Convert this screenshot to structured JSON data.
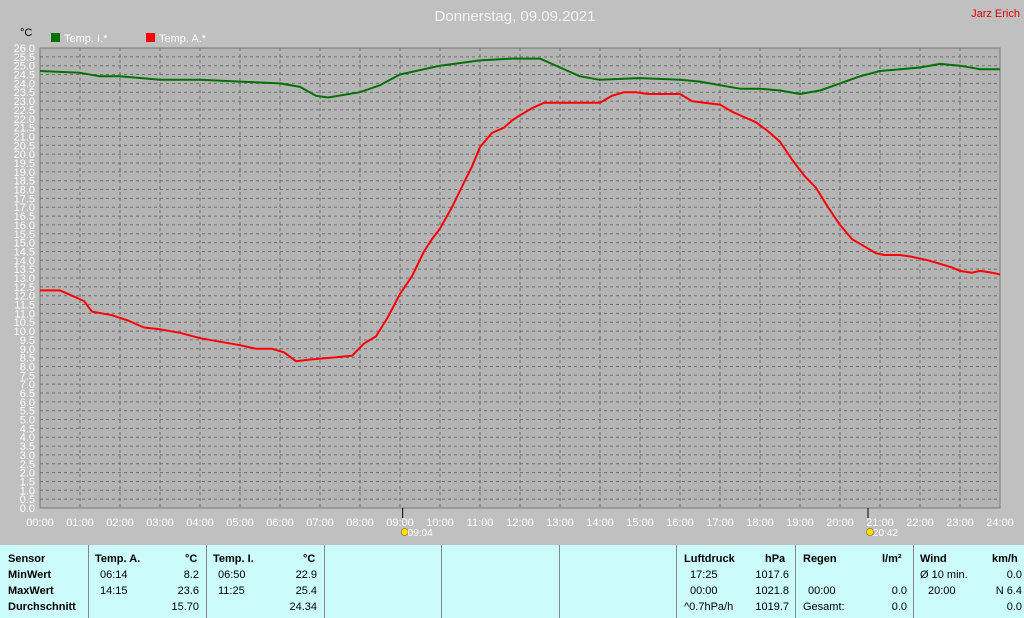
{
  "header": {
    "title": "Donnerstag, 09.09.2021",
    "author": "Jarz Erich"
  },
  "chart_data": {
    "type": "line",
    "y_unit": "°C",
    "ylim": [
      0,
      26
    ],
    "y_ticks": [
      "0.0",
      "0.5",
      "1.0",
      "1.5",
      "2.0",
      "2.5",
      "3.0",
      "3.5",
      "4.0",
      "4.5",
      "5.0",
      "5.5",
      "6.0",
      "6.5",
      "7.0",
      "7.5",
      "8.0",
      "8.5",
      "9.0",
      "9.5",
      "10.0",
      "10.5",
      "11.0",
      "11.5",
      "12.0",
      "12.5",
      "13.0",
      "13.5",
      "14.0",
      "14.5",
      "15.0",
      "15.5",
      "16.0",
      "16.5",
      "17.0",
      "17.5",
      "18.0",
      "18.5",
      "19.0",
      "19.5",
      "20.0",
      "20.5",
      "21.0",
      "21.5",
      "22.0",
      "22.5",
      "23.0",
      "23.5",
      "24.0",
      "24.5",
      "25.0",
      "25.5",
      "26.0"
    ],
    "x_ticks": [
      "00:00",
      "01:00",
      "02:00",
      "03:00",
      "04:00",
      "05:00",
      "06:00",
      "07:00",
      "08:00",
      "09:00",
      "10:00",
      "11:00",
      "12:00",
      "13:00",
      "14:00",
      "15:00",
      "16:00",
      "17:00",
      "18:00",
      "19:00",
      "20:00",
      "21:00",
      "22:00",
      "23:00",
      "24:00"
    ],
    "grid": true,
    "legend_position": "top-left",
    "markers": [
      {
        "label": "09:04",
        "hour": 9.0667,
        "icon": "sunrise-icon"
      },
      {
        "label": "20:42",
        "hour": 20.7,
        "icon": "sunset-icon"
      }
    ],
    "series": [
      {
        "name": "Temp. I.*",
        "color": "#007000",
        "points": [
          [
            0,
            24.7
          ],
          [
            1,
            24.6
          ],
          [
            1.5,
            24.4
          ],
          [
            2,
            24.4
          ],
          [
            3,
            24.2
          ],
          [
            4,
            24.2
          ],
          [
            5,
            24.1
          ],
          [
            6,
            24.0
          ],
          [
            6.5,
            23.8
          ],
          [
            6.9,
            23.3
          ],
          [
            7.2,
            23.2
          ],
          [
            8,
            23.5
          ],
          [
            8.5,
            23.9
          ],
          [
            9,
            24.5
          ],
          [
            10,
            25.0
          ],
          [
            11,
            25.3
          ],
          [
            11.8,
            25.4
          ],
          [
            12.5,
            25.4
          ],
          [
            13,
            24.9
          ],
          [
            13.5,
            24.4
          ],
          [
            14,
            24.2
          ],
          [
            15,
            24.3
          ],
          [
            16,
            24.2
          ],
          [
            16.5,
            24.1
          ],
          [
            17,
            23.9
          ],
          [
            17.5,
            23.7
          ],
          [
            18,
            23.7
          ],
          [
            18.5,
            23.6
          ],
          [
            19,
            23.4
          ],
          [
            19.5,
            23.6
          ],
          [
            20,
            24.0
          ],
          [
            20.5,
            24.4
          ],
          [
            21,
            24.7
          ],
          [
            22,
            24.9
          ],
          [
            22.5,
            25.1
          ],
          [
            23,
            25.0
          ],
          [
            23.5,
            24.8
          ],
          [
            24,
            24.8
          ]
        ]
      },
      {
        "name": "Temp. A.*",
        "color": "#ff0000",
        "points": [
          [
            0,
            12.3
          ],
          [
            0.5,
            12.3
          ],
          [
            0.8,
            12.0
          ],
          [
            1.1,
            11.7
          ],
          [
            1.3,
            11.1
          ],
          [
            1.8,
            10.9
          ],
          [
            2.2,
            10.6
          ],
          [
            2.6,
            10.2
          ],
          [
            3,
            10.1
          ],
          [
            3.5,
            9.9
          ],
          [
            4,
            9.6
          ],
          [
            4.5,
            9.4
          ],
          [
            5,
            9.2
          ],
          [
            5.4,
            9.0
          ],
          [
            5.8,
            9.0
          ],
          [
            6.1,
            8.8
          ],
          [
            6.4,
            8.3
          ],
          [
            6.8,
            8.4
          ],
          [
            7.3,
            8.5
          ],
          [
            7.8,
            8.6
          ],
          [
            8.1,
            9.3
          ],
          [
            8.4,
            9.7
          ],
          [
            8.7,
            10.8
          ],
          [
            9,
            12.1
          ],
          [
            9.3,
            13.1
          ],
          [
            9.6,
            14.5
          ],
          [
            9.8,
            15.2
          ],
          [
            10,
            15.8
          ],
          [
            10.3,
            17.0
          ],
          [
            10.6,
            18.4
          ],
          [
            10.8,
            19.3
          ],
          [
            11,
            20.4
          ],
          [
            11.3,
            21.2
          ],
          [
            11.6,
            21.5
          ],
          [
            11.8,
            21.9
          ],
          [
            12,
            22.2
          ],
          [
            12.3,
            22.6
          ],
          [
            12.6,
            22.9
          ],
          [
            13.1,
            22.9
          ],
          [
            14,
            22.9
          ],
          [
            14.3,
            23.3
          ],
          [
            14.6,
            23.5
          ],
          [
            14.9,
            23.5
          ],
          [
            15.2,
            23.4
          ],
          [
            15.6,
            23.4
          ],
          [
            16,
            23.4
          ],
          [
            16.3,
            23.0
          ],
          [
            16.6,
            22.9
          ],
          [
            17,
            22.8
          ],
          [
            17.3,
            22.4
          ],
          [
            17.6,
            22.1
          ],
          [
            17.9,
            21.8
          ],
          [
            18.2,
            21.3
          ],
          [
            18.5,
            20.7
          ],
          [
            18.8,
            19.7
          ],
          [
            19.1,
            18.8
          ],
          [
            19.4,
            18.1
          ],
          [
            19.7,
            17.0
          ],
          [
            20,
            16.0
          ],
          [
            20.3,
            15.2
          ],
          [
            20.6,
            14.8
          ],
          [
            20.9,
            14.4
          ],
          [
            21.1,
            14.3
          ],
          [
            21.5,
            14.3
          ],
          [
            21.8,
            14.2
          ],
          [
            22.2,
            14.0
          ],
          [
            22.5,
            13.8
          ],
          [
            22.8,
            13.6
          ],
          [
            23,
            13.4
          ],
          [
            23.3,
            13.3
          ],
          [
            23.5,
            13.4
          ],
          [
            23.8,
            13.3
          ],
          [
            24,
            13.2
          ]
        ]
      }
    ]
  },
  "stats": {
    "sensor_header": "Sensor",
    "row_labels": [
      "MinWert",
      "MaxWert",
      "Durchschnitt"
    ],
    "temp_a": {
      "title": "Temp. A.",
      "unit": "°C",
      "min_time": "06:14",
      "min_value": "8.2",
      "max_time": "14:15",
      "max_value": "23.6",
      "avg": "15.70"
    },
    "temp_i": {
      "title": "Temp. I.",
      "unit": "°C",
      "min_time": "06:50",
      "min_value": "22.9",
      "max_time": "11:25",
      "max_value": "25.4",
      "avg": "24.34"
    },
    "pressure": {
      "title": "Luftdruck",
      "unit": "hPa",
      "min_time": "17:25",
      "min_value": "1017.6",
      "max_time": "00:00",
      "max_value": "1021.8",
      "trend_label": "^0.7hPa/h",
      "trend_value": "1019.7"
    },
    "rain": {
      "title": "Regen",
      "unit": "l/m²",
      "time": "00:00",
      "value": "0.0",
      "total_label": "Gesamt:",
      "total_value": "0.0"
    },
    "wind": {
      "title": "Wind",
      "unit": "km/h",
      "avg_label": "Ø 10 min.",
      "avg_value": "0.0",
      "max_time": "20:00",
      "max_value": "N 6.4",
      "last_value": "0.0"
    }
  }
}
